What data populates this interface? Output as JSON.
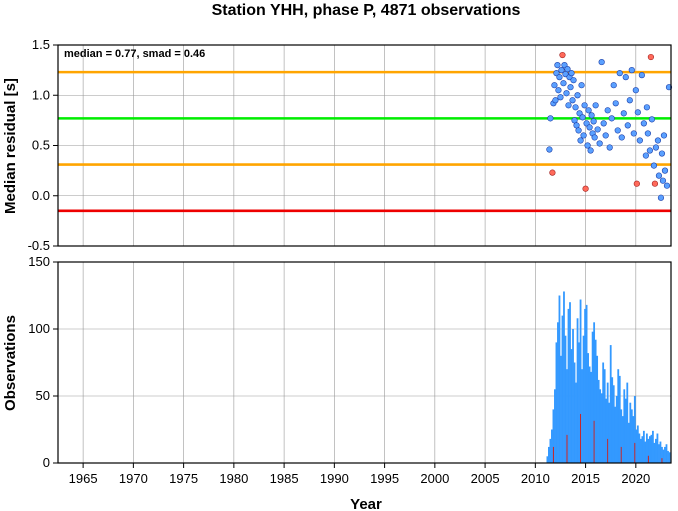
{
  "title": "Station YHH, phase P, 4871 observations",
  "chart_data": [
    {
      "type": "scatter",
      "ylabel": "Median residual [s]",
      "annotation": "median = 0.77, smad = 0.46",
      "xlim": [
        1962.5,
        2023.5
      ],
      "ylim": [
        -0.5,
        1.5
      ],
      "yticks": [
        "1.5",
        "1.0",
        "0.5",
        "0.0",
        "-0.5"
      ],
      "grid": true,
      "reference_lines": [
        {
          "value": 1.23,
          "color": "#ffa500"
        },
        {
          "value": 0.77,
          "color": "#00ee00"
        },
        {
          "value": 0.31,
          "color": "#ffa500"
        },
        {
          "value": -0.15,
          "color": "#ee0000"
        }
      ],
      "colors": {
        "normal": "#5aa0ff",
        "outlier": "#ff6a5a",
        "edge": "#1d3fa8"
      },
      "points": [
        {
          "x": 2011.4,
          "y": 0.46
        },
        {
          "x": 2011.5,
          "y": 0.77
        },
        {
          "x": 2011.7,
          "y": 0.23,
          "outlier": true
        },
        {
          "x": 2011.8,
          "y": 0.92
        },
        {
          "x": 2011.9,
          "y": 1.1
        },
        {
          "x": 2012.0,
          "y": 0.95
        },
        {
          "x": 2012.1,
          "y": 1.22
        },
        {
          "x": 2012.2,
          "y": 1.3
        },
        {
          "x": 2012.3,
          "y": 1.05
        },
        {
          "x": 2012.4,
          "y": 1.18
        },
        {
          "x": 2012.5,
          "y": 0.98
        },
        {
          "x": 2012.6,
          "y": 1.25
        },
        {
          "x": 2012.7,
          "y": 1.4,
          "outlier": true
        },
        {
          "x": 2012.8,
          "y": 1.12
        },
        {
          "x": 2012.9,
          "y": 1.3
        },
        {
          "x": 2013.0,
          "y": 1.21
        },
        {
          "x": 2013.1,
          "y": 1.02
        },
        {
          "x": 2013.2,
          "y": 1.26
        },
        {
          "x": 2013.3,
          "y": 0.9
        },
        {
          "x": 2013.4,
          "y": 1.18
        },
        {
          "x": 2013.5,
          "y": 1.08
        },
        {
          "x": 2013.6,
          "y": 1.22
        },
        {
          "x": 2013.7,
          "y": 0.95
        },
        {
          "x": 2013.8,
          "y": 1.15
        },
        {
          "x": 2013.9,
          "y": 0.75
        },
        {
          "x": 2014.0,
          "y": 0.88
        },
        {
          "x": 2014.1,
          "y": 0.7
        },
        {
          "x": 2014.2,
          "y": 1.0
        },
        {
          "x": 2014.3,
          "y": 0.65
        },
        {
          "x": 2014.4,
          "y": 0.82
        },
        {
          "x": 2014.5,
          "y": 0.55
        },
        {
          "x": 2014.6,
          "y": 1.1
        },
        {
          "x": 2014.7,
          "y": 0.78
        },
        {
          "x": 2014.8,
          "y": 0.6
        },
        {
          "x": 2014.9,
          "y": 0.9
        },
        {
          "x": 2015.0,
          "y": 0.07,
          "outlier": true
        },
        {
          "x": 2015.1,
          "y": 0.72
        },
        {
          "x": 2015.2,
          "y": 0.5
        },
        {
          "x": 2015.3,
          "y": 0.85
        },
        {
          "x": 2015.4,
          "y": 0.68
        },
        {
          "x": 2015.5,
          "y": 0.45
        },
        {
          "x": 2015.6,
          "y": 0.8
        },
        {
          "x": 2015.7,
          "y": 0.62
        },
        {
          "x": 2015.8,
          "y": 0.74
        },
        {
          "x": 2015.9,
          "y": 0.58
        },
        {
          "x": 2016.0,
          "y": 0.9
        },
        {
          "x": 2016.2,
          "y": 0.66
        },
        {
          "x": 2016.4,
          "y": 0.52
        },
        {
          "x": 2016.6,
          "y": 1.33
        },
        {
          "x": 2016.8,
          "y": 0.72
        },
        {
          "x": 2017.0,
          "y": 0.6
        },
        {
          "x": 2017.2,
          "y": 0.85
        },
        {
          "x": 2017.4,
          "y": 0.48
        },
        {
          "x": 2017.6,
          "y": 0.77
        },
        {
          "x": 2017.8,
          "y": 1.1
        },
        {
          "x": 2018.0,
          "y": 0.92
        },
        {
          "x": 2018.2,
          "y": 0.65
        },
        {
          "x": 2018.4,
          "y": 1.22
        },
        {
          "x": 2018.6,
          "y": 0.58
        },
        {
          "x": 2018.8,
          "y": 0.82
        },
        {
          "x": 2019.0,
          "y": 1.18
        },
        {
          "x": 2019.2,
          "y": 0.7
        },
        {
          "x": 2019.4,
          "y": 0.95
        },
        {
          "x": 2019.6,
          "y": 1.25
        },
        {
          "x": 2019.8,
          "y": 0.62
        },
        {
          "x": 2020.0,
          "y": 1.05
        },
        {
          "x": 2020.1,
          "y": 0.12,
          "outlier": true
        },
        {
          "x": 2020.2,
          "y": 0.83
        },
        {
          "x": 2020.4,
          "y": 0.55
        },
        {
          "x": 2020.6,
          "y": 1.2
        },
        {
          "x": 2020.8,
          "y": 0.72
        },
        {
          "x": 2021.0,
          "y": 0.4
        },
        {
          "x": 2021.1,
          "y": 0.88
        },
        {
          "x": 2021.2,
          "y": 0.62
        },
        {
          "x": 2021.4,
          "y": 0.45
        },
        {
          "x": 2021.5,
          "y": 1.38,
          "outlier": true
        },
        {
          "x": 2021.6,
          "y": 0.76
        },
        {
          "x": 2021.8,
          "y": 0.3
        },
        {
          "x": 2021.9,
          "y": 0.12,
          "outlier": true
        },
        {
          "x": 2022.0,
          "y": 0.48
        },
        {
          "x": 2022.2,
          "y": 0.55
        },
        {
          "x": 2022.3,
          "y": 0.2
        },
        {
          "x": 2022.5,
          "y": -0.02
        },
        {
          "x": 2022.6,
          "y": 0.42
        },
        {
          "x": 2022.7,
          "y": 0.15
        },
        {
          "x": 2022.8,
          "y": 0.6
        },
        {
          "x": 2022.9,
          "y": 0.25
        },
        {
          "x": 2023.1,
          "y": 0.1
        },
        {
          "x": 2023.3,
          "y": 1.08
        }
      ]
    },
    {
      "type": "bar",
      "ylabel": "Observations",
      "xlabel": "Year",
      "xlim": [
        1962.5,
        2023.5
      ],
      "ylim": [
        0,
        150
      ],
      "xticks": [
        "1965",
        "1970",
        "1975",
        "1980",
        "1985",
        "1990",
        "1995",
        "2000",
        "2005",
        "2010",
        "2015",
        "2020"
      ],
      "yticks": [
        "150",
        "100",
        "50",
        "0"
      ],
      "grid": true,
      "colors": {
        "bars": "#3399ff",
        "accent": "#cc2222"
      },
      "series": [
        {
          "x": [
            2011.2,
            2011.35,
            2011.5,
            2011.65,
            2011.8,
            2011.95,
            2012.1,
            2012.25,
            2012.4,
            2012.55,
            2012.7,
            2012.85,
            2013.0,
            2013.15,
            2013.3,
            2013.45,
            2013.6,
            2013.75,
            2013.9,
            2014.05,
            2014.2,
            2014.35,
            2014.5,
            2014.65,
            2014.8,
            2014.95,
            2015.1,
            2015.25,
            2015.4,
            2015.55,
            2015.7,
            2015.85,
            2016.0,
            2016.15,
            2016.3,
            2016.45,
            2016.6,
            2016.75,
            2016.9,
            2017.05,
            2017.2,
            2017.35,
            2017.5,
            2017.65,
            2017.8,
            2017.95,
            2018.1,
            2018.25,
            2018.4,
            2018.55,
            2018.7,
            2018.85,
            2019.0,
            2019.15,
            2019.3,
            2019.45,
            2019.6,
            2019.75,
            2019.9,
            2020.05,
            2020.2,
            2020.35,
            2020.5,
            2020.65,
            2020.8,
            2020.95,
            2021.1,
            2021.25,
            2021.4,
            2021.55,
            2021.7,
            2021.85,
            2022.0,
            2022.15,
            2022.3,
            2022.45,
            2022.6,
            2022.75,
            2022.9,
            2023.05,
            2023.2,
            2023.35
          ],
          "values": [
            5,
            12,
            18,
            25,
            40,
            55,
            90,
            105,
            125,
            80,
            110,
            128,
            95,
            70,
            115,
            120,
            85,
            100,
            75,
            60,
            108,
            90,
            122,
            70,
            95,
            115,
            118,
            82,
            72,
            68,
            98,
            105,
            92,
            80,
            62,
            55,
            52,
            75,
            70,
            48,
            60,
            45,
            88,
            64,
            58,
            42,
            50,
            70,
            65,
            40,
            35,
            55,
            48,
            60,
            30,
            45,
            40,
            35,
            50,
            25,
            28,
            22,
            18,
            20,
            24,
            16,
            22,
            18,
            20,
            21,
            24,
            15,
            18,
            22,
            14,
            16,
            12,
            10,
            12,
            14,
            9,
            8
          ]
        }
      ]
    }
  ]
}
